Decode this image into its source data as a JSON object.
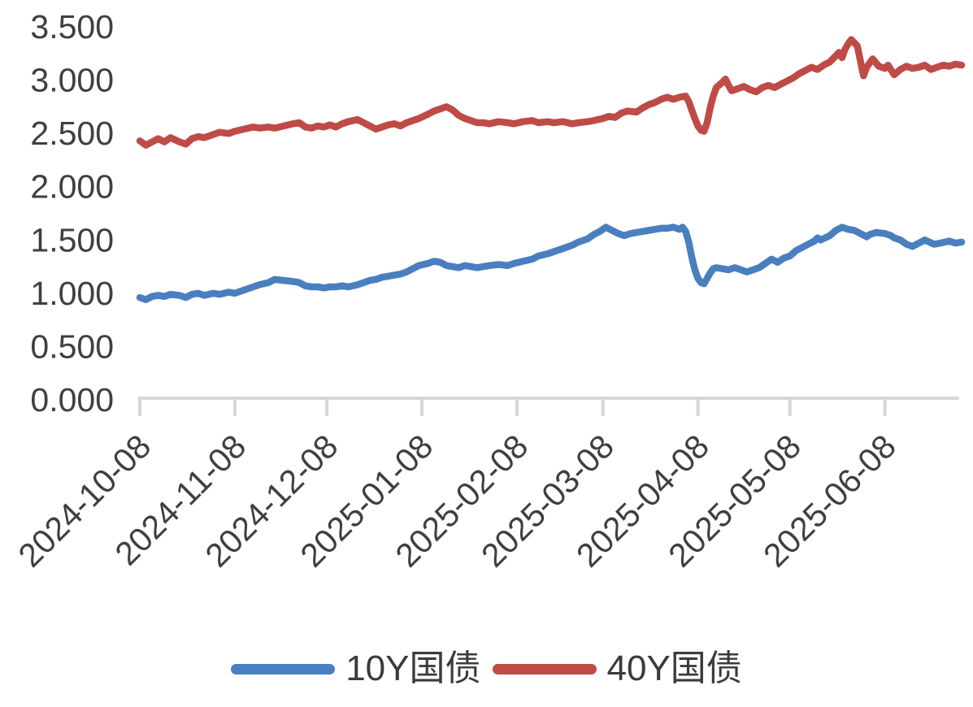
{
  "page": {
    "background": "#ffffff"
  },
  "chart_data": {
    "type": "line",
    "title": "",
    "grid": false,
    "colors": {
      "axis": "#d6d6d6",
      "tick_label": "#3f3f3f"
    },
    "y_axis": {
      "ylim": [
        0,
        3.5
      ],
      "tick_values": [
        0,
        0.5,
        1.0,
        1.5,
        2.0,
        2.5,
        3.0,
        3.5
      ],
      "tick_labels": [
        "0.000",
        "0.500",
        "1.000",
        "1.500",
        "2.000",
        "2.500",
        "3.000",
        "3.500"
      ]
    },
    "x_axis": {
      "total_days": 268,
      "ticks": [
        {
          "label": "2024-10-08",
          "d": 0
        },
        {
          "label": "2024-11-08",
          "d": 31
        },
        {
          "label": "2024-12-08",
          "d": 61
        },
        {
          "label": "2025-01-08",
          "d": 92
        },
        {
          "label": "2025-02-08",
          "d": 123
        },
        {
          "label": "2025-03-08",
          "d": 151
        },
        {
          "label": "2025-04-08",
          "d": 182
        },
        {
          "label": "2025-05-08",
          "d": 212
        },
        {
          "label": "2025-06-08",
          "d": 243
        }
      ]
    },
    "legend": {
      "position": "bottom",
      "entries": [
        "10Y国债",
        "40Y国债"
      ]
    },
    "series": [
      {
        "name": "10Y国债",
        "color": "#4a7fbf",
        "points": [
          [
            0,
            0.96
          ],
          [
            2,
            0.94
          ],
          [
            4,
            0.97
          ],
          [
            6,
            0.98
          ],
          [
            8,
            0.97
          ],
          [
            10,
            0.99
          ],
          [
            13,
            0.98
          ],
          [
            15,
            0.96
          ],
          [
            17,
            0.99
          ],
          [
            19,
            1.0
          ],
          [
            21,
            0.98
          ],
          [
            24,
            1.0
          ],
          [
            26,
            0.99
          ],
          [
            29,
            1.01
          ],
          [
            31,
            1.0
          ],
          [
            34,
            1.03
          ],
          [
            37,
            1.06
          ],
          [
            39,
            1.08
          ],
          [
            42,
            1.1
          ],
          [
            44,
            1.13
          ],
          [
            47,
            1.12
          ],
          [
            50,
            1.11
          ],
          [
            52,
            1.1
          ],
          [
            54,
            1.07
          ],
          [
            56,
            1.06
          ],
          [
            58,
            1.06
          ],
          [
            60,
            1.05
          ],
          [
            62,
            1.06
          ],
          [
            64,
            1.06
          ],
          [
            66,
            1.07
          ],
          [
            68,
            1.06
          ],
          [
            71,
            1.08
          ],
          [
            73,
            1.1
          ],
          [
            75,
            1.12
          ],
          [
            77,
            1.13
          ],
          [
            79,
            1.15
          ],
          [
            81,
            1.16
          ],
          [
            83,
            1.17
          ],
          [
            85,
            1.18
          ],
          [
            87,
            1.2
          ],
          [
            89,
            1.23
          ],
          [
            91,
            1.26
          ],
          [
            94,
            1.28
          ],
          [
            96,
            1.3
          ],
          [
            98,
            1.29
          ],
          [
            100,
            1.26
          ],
          [
            102,
            1.25
          ],
          [
            104,
            1.24
          ],
          [
            106,
            1.26
          ],
          [
            108,
            1.25
          ],
          [
            110,
            1.24
          ],
          [
            112,
            1.25
          ],
          [
            114,
            1.26
          ],
          [
            117,
            1.27
          ],
          [
            120,
            1.26
          ],
          [
            122,
            1.28
          ],
          [
            125,
            1.3
          ],
          [
            128,
            1.32
          ],
          [
            130,
            1.35
          ],
          [
            133,
            1.37
          ],
          [
            135,
            1.39
          ],
          [
            138,
            1.42
          ],
          [
            141,
            1.45
          ],
          [
            143,
            1.48
          ],
          [
            146,
            1.51
          ],
          [
            148,
            1.55
          ],
          [
            150,
            1.58
          ],
          [
            152,
            1.62
          ],
          [
            154,
            1.59
          ],
          [
            156,
            1.56
          ],
          [
            158,
            1.54
          ],
          [
            160,
            1.56
          ],
          [
            162,
            1.57
          ],
          [
            164,
            1.58
          ],
          [
            166,
            1.59
          ],
          [
            168,
            1.6
          ],
          [
            170,
            1.61
          ],
          [
            172,
            1.61
          ],
          [
            174,
            1.62
          ],
          [
            176,
            1.6
          ],
          [
            177,
            1.62
          ],
          [
            178,
            1.58
          ],
          [
            179,
            1.48
          ],
          [
            180,
            1.34
          ],
          [
            181,
            1.22
          ],
          [
            182,
            1.14
          ],
          [
            183,
            1.1
          ],
          [
            184,
            1.09
          ],
          [
            185,
            1.14
          ],
          [
            186,
            1.19
          ],
          [
            187,
            1.23
          ],
          [
            188,
            1.24
          ],
          [
            190,
            1.23
          ],
          [
            192,
            1.22
          ],
          [
            194,
            1.24
          ],
          [
            196,
            1.22
          ],
          [
            198,
            1.2
          ],
          [
            200,
            1.22
          ],
          [
            202,
            1.24
          ],
          [
            204,
            1.28
          ],
          [
            206,
            1.32
          ],
          [
            208,
            1.29
          ],
          [
            210,
            1.33
          ],
          [
            212,
            1.35
          ],
          [
            214,
            1.4
          ],
          [
            216,
            1.43
          ],
          [
            218,
            1.46
          ],
          [
            220,
            1.49
          ],
          [
            221,
            1.52
          ],
          [
            222,
            1.5
          ],
          [
            225,
            1.54
          ],
          [
            227,
            1.59
          ],
          [
            229,
            1.62
          ],
          [
            231,
            1.6
          ],
          [
            233,
            1.59
          ],
          [
            235,
            1.56
          ],
          [
            237,
            1.53
          ],
          [
            238,
            1.55
          ],
          [
            240,
            1.57
          ],
          [
            243,
            1.56
          ],
          [
            245,
            1.54
          ],
          [
            246,
            1.52
          ],
          [
            248,
            1.5
          ],
          [
            250,
            1.46
          ],
          [
            252,
            1.44
          ],
          [
            254,
            1.47
          ],
          [
            256,
            1.5
          ],
          [
            259,
            1.46
          ],
          [
            261,
            1.47
          ],
          [
            264,
            1.49
          ],
          [
            266,
            1.47
          ],
          [
            268,
            1.48
          ]
        ]
      },
      {
        "name": "40Y国债",
        "color": "#bf4b47",
        "points": [
          [
            0,
            2.43
          ],
          [
            2,
            2.39
          ],
          [
            4,
            2.42
          ],
          [
            6,
            2.45
          ],
          [
            8,
            2.42
          ],
          [
            10,
            2.46
          ],
          [
            13,
            2.42
          ],
          [
            15,
            2.4
          ],
          [
            17,
            2.45
          ],
          [
            19,
            2.47
          ],
          [
            21,
            2.46
          ],
          [
            24,
            2.49
          ],
          [
            26,
            2.51
          ],
          [
            29,
            2.5
          ],
          [
            31,
            2.52
          ],
          [
            34,
            2.54
          ],
          [
            37,
            2.56
          ],
          [
            39,
            2.55
          ],
          [
            42,
            2.56
          ],
          [
            44,
            2.55
          ],
          [
            47,
            2.57
          ],
          [
            50,
            2.59
          ],
          [
            52,
            2.6
          ],
          [
            54,
            2.56
          ],
          [
            56,
            2.55
          ],
          [
            58,
            2.57
          ],
          [
            60,
            2.56
          ],
          [
            62,
            2.58
          ],
          [
            64,
            2.56
          ],
          [
            66,
            2.59
          ],
          [
            68,
            2.61
          ],
          [
            71,
            2.63
          ],
          [
            73,
            2.6
          ],
          [
            75,
            2.57
          ],
          [
            77,
            2.54
          ],
          [
            79,
            2.56
          ],
          [
            81,
            2.58
          ],
          [
            83,
            2.59
          ],
          [
            85,
            2.57
          ],
          [
            87,
            2.6
          ],
          [
            89,
            2.62
          ],
          [
            91,
            2.64
          ],
          [
            94,
            2.68
          ],
          [
            96,
            2.71
          ],
          [
            98,
            2.73
          ],
          [
            100,
            2.75
          ],
          [
            102,
            2.72
          ],
          [
            104,
            2.67
          ],
          [
            106,
            2.64
          ],
          [
            108,
            2.62
          ],
          [
            110,
            2.6
          ],
          [
            112,
            2.6
          ],
          [
            114,
            2.59
          ],
          [
            117,
            2.61
          ],
          [
            120,
            2.6
          ],
          [
            122,
            2.59
          ],
          [
            125,
            2.61
          ],
          [
            128,
            2.62
          ],
          [
            130,
            2.6
          ],
          [
            133,
            2.61
          ],
          [
            135,
            2.6
          ],
          [
            138,
            2.61
          ],
          [
            141,
            2.59
          ],
          [
            143,
            2.6
          ],
          [
            146,
            2.61
          ],
          [
            148,
            2.62
          ],
          [
            151,
            2.64
          ],
          [
            153,
            2.66
          ],
          [
            155,
            2.65
          ],
          [
            157,
            2.69
          ],
          [
            159,
            2.71
          ],
          [
            162,
            2.7
          ],
          [
            164,
            2.74
          ],
          [
            166,
            2.77
          ],
          [
            168,
            2.79
          ],
          [
            170,
            2.82
          ],
          [
            172,
            2.84
          ],
          [
            174,
            2.82
          ],
          [
            176,
            2.84
          ],
          [
            178,
            2.85
          ],
          [
            179,
            2.8
          ],
          [
            180,
            2.72
          ],
          [
            181,
            2.64
          ],
          [
            182,
            2.57
          ],
          [
            183,
            2.53
          ],
          [
            184,
            2.52
          ],
          [
            185,
            2.6
          ],
          [
            186,
            2.74
          ],
          [
            187,
            2.85
          ],
          [
            188,
            2.93
          ],
          [
            190,
            2.98
          ],
          [
            191,
            3.01
          ],
          [
            192,
            2.95
          ],
          [
            193,
            2.9
          ],
          [
            195,
            2.92
          ],
          [
            197,
            2.94
          ],
          [
            199,
            2.91
          ],
          [
            201,
            2.89
          ],
          [
            203,
            2.93
          ],
          [
            205,
            2.95
          ],
          [
            207,
            2.93
          ],
          [
            209,
            2.96
          ],
          [
            211,
            2.99
          ],
          [
            213,
            3.02
          ],
          [
            215,
            3.06
          ],
          [
            217,
            3.09
          ],
          [
            219,
            3.12
          ],
          [
            221,
            3.1
          ],
          [
            223,
            3.14
          ],
          [
            225,
            3.17
          ],
          [
            226,
            3.2
          ],
          [
            228,
            3.26
          ],
          [
            229,
            3.21
          ],
          [
            230,
            3.29
          ],
          [
            231,
            3.34
          ],
          [
            232,
            3.38
          ],
          [
            234,
            3.32
          ],
          [
            235,
            3.18
          ],
          [
            236,
            3.04
          ],
          [
            237,
            3.12
          ],
          [
            239,
            3.2
          ],
          [
            241,
            3.13
          ],
          [
            243,
            3.11
          ],
          [
            244,
            3.14
          ],
          [
            246,
            3.05
          ],
          [
            248,
            3.1
          ],
          [
            250,
            3.13
          ],
          [
            252,
            3.11
          ],
          [
            254,
            3.12
          ],
          [
            256,
            3.14
          ],
          [
            258,
            3.1
          ],
          [
            260,
            3.12
          ],
          [
            262,
            3.14
          ],
          [
            264,
            3.13
          ],
          [
            266,
            3.15
          ],
          [
            268,
            3.14
          ]
        ]
      }
    ]
  }
}
